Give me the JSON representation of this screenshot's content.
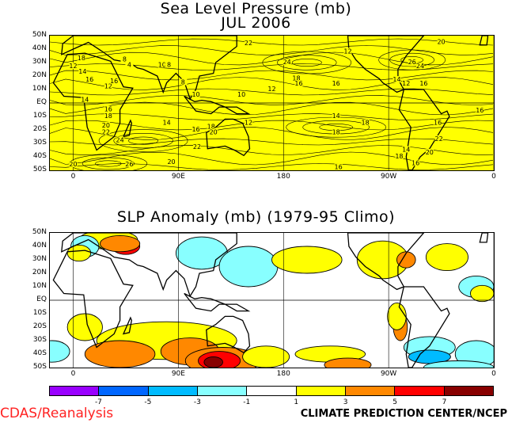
{
  "top_map": {
    "title_line1": "Sea Level Pressure (mb)",
    "title_line2": "JUL 2006",
    "fill_color": "#ffff00",
    "contour_labels": [
      {
        "text": "22",
        "lon": 150,
        "lat": 44
      },
      {
        "text": "20",
        "lon": 315,
        "lat": 45
      },
      {
        "text": "12",
        "lon": 235,
        "lat": 38
      },
      {
        "text": "24",
        "lon": 183,
        "lat": 30
      },
      {
        "text": "26",
        "lon": 290,
        "lat": 30
      },
      {
        "text": "24",
        "lon": 297,
        "lat": 27
      },
      {
        "text": "18",
        "lon": 7,
        "lat": 33
      },
      {
        "text": "12",
        "lon": 0,
        "lat": 27
      },
      {
        "text": "14",
        "lon": 8,
        "lat": 23
      },
      {
        "text": "16",
        "lon": 14,
        "lat": 17
      },
      {
        "text": "12",
        "lon": 30,
        "lat": 12
      },
      {
        "text": "16",
        "lon": 35,
        "lat": 16
      },
      {
        "text": "8",
        "lon": 44,
        "lat": 32
      },
      {
        "text": "4",
        "lon": 48,
        "lat": 28
      },
      {
        "text": "10",
        "lon": 76,
        "lat": 28
      },
      {
        "text": "8",
        "lon": 82,
        "lat": 28
      },
      {
        "text": "8",
        "lon": 94,
        "lat": 15
      },
      {
        "text": "10",
        "lon": 105,
        "lat": 6
      },
      {
        "text": "10",
        "lon": 144,
        "lat": 6
      },
      {
        "text": "12",
        "lon": 170,
        "lat": 10
      },
      {
        "text": "18",
        "lon": 191,
        "lat": 18
      },
      {
        "text": "16",
        "lon": 193,
        "lat": 14
      },
      {
        "text": "16",
        "lon": 225,
        "lat": 14
      },
      {
        "text": "14",
        "lon": 277,
        "lat": 17
      },
      {
        "text": "12",
        "lon": 285,
        "lat": 14
      },
      {
        "text": "16",
        "lon": 300,
        "lat": 14
      },
      {
        "text": "14",
        "lon": 10,
        "lat": 2
      },
      {
        "text": "16",
        "lon": 30,
        "lat": -5
      },
      {
        "text": "18",
        "lon": 30,
        "lat": -10
      },
      {
        "text": "20",
        "lon": 28,
        "lat": -17
      },
      {
        "text": "22",
        "lon": 28,
        "lat": -22
      },
      {
        "text": "24",
        "lon": 40,
        "lat": -28
      },
      {
        "text": "14",
        "lon": 80,
        "lat": -15
      },
      {
        "text": "16",
        "lon": 105,
        "lat": -20
      },
      {
        "text": "18",
        "lon": 118,
        "lat": -18
      },
      {
        "text": "20",
        "lon": 120,
        "lat": -22
      },
      {
        "text": "22",
        "lon": 106,
        "lat": -33
      },
      {
        "text": "12",
        "lon": 150,
        "lat": -15
      },
      {
        "text": "14",
        "lon": 225,
        "lat": -10
      },
      {
        "text": "18",
        "lon": 225,
        "lat": -22
      },
      {
        "text": "18",
        "lon": 250,
        "lat": -15
      },
      {
        "text": "16",
        "lon": 312,
        "lat": -15
      },
      {
        "text": "22",
        "lon": 313,
        "lat": -27
      },
      {
        "text": "20",
        "lon": 305,
        "lat": -37
      },
      {
        "text": "14",
        "lon": 285,
        "lat": -35
      },
      {
        "text": "18",
        "lon": 279,
        "lat": -40
      },
      {
        "text": "16",
        "lon": 293,
        "lat": -45
      },
      {
        "text": "14",
        "lon": 295,
        "lat": -51
      },
      {
        "text": "12",
        "lon": 296,
        "lat": -55
      },
      {
        "text": "18",
        "lon": 278,
        "lat": -51
      },
      {
        "text": "16",
        "lon": 227,
        "lat": -48
      },
      {
        "text": "12",
        "lon": 207,
        "lat": -52
      },
      {
        "text": "18",
        "lon": 155,
        "lat": -52
      },
      {
        "text": "14",
        "lon": 147,
        "lat": -58
      },
      {
        "text": "10",
        "lon": 157,
        "lat": -60
      },
      {
        "text": "22",
        "lon": -18,
        "lat": -36
      },
      {
        "text": "20",
        "lon": 0,
        "lat": -46
      },
      {
        "text": "16",
        "lon": 28,
        "lat": -54
      },
      {
        "text": "18",
        "lon": 5,
        "lat": -50
      },
      {
        "text": "26",
        "lon": 48,
        "lat": -46
      },
      {
        "text": "20",
        "lon": 84,
        "lat": -44
      },
      {
        "text": "12",
        "lon": 84,
        "lat": -51
      },
      {
        "text": "16",
        "lon": 348,
        "lat": -6
      }
    ]
  },
  "bottom_map": {
    "title": "SLP Anomaly (mb) (1979-95 Climo)",
    "anomaly_regions": [
      {
        "level": 5,
        "lon": 45,
        "lat": 40,
        "rx": 12,
        "ry": 6
      },
      {
        "level": 1,
        "lon": 30,
        "lat": 45,
        "rx": 25,
        "ry": 7
      },
      {
        "level": 3,
        "lon": 40,
        "lat": 42,
        "rx": 17,
        "ry": 6
      },
      {
        "level": -1,
        "lon": 110,
        "lat": 35,
        "rx": 22,
        "ry": 12
      },
      {
        "level": -1,
        "lon": 150,
        "lat": 25,
        "rx": 25,
        "ry": 15
      },
      {
        "level": 1,
        "lon": 200,
        "lat": 30,
        "rx": 30,
        "ry": 10
      },
      {
        "level": 1,
        "lon": 265,
        "lat": 30,
        "rx": 22,
        "ry": 14
      },
      {
        "level": 3,
        "lon": 285,
        "lat": 30,
        "rx": 8,
        "ry": 6
      },
      {
        "level": 1,
        "lon": 320,
        "lat": 32,
        "rx": 18,
        "ry": 10
      },
      {
        "level": -1,
        "lon": 345,
        "lat": 10,
        "rx": 15,
        "ry": 8
      },
      {
        "level": 1,
        "lon": 350,
        "lat": 5,
        "rx": 10,
        "ry": 6
      },
      {
        "level": -1,
        "lon": 10,
        "lat": 40,
        "rx": 12,
        "ry": 8
      },
      {
        "level": 1,
        "lon": 5,
        "lat": 35,
        "rx": 10,
        "ry": 6
      },
      {
        "level": 1,
        "lon": 80,
        "lat": -30,
        "rx": 60,
        "ry": 14
      },
      {
        "level": 3,
        "lon": 40,
        "lat": -40,
        "rx": 30,
        "ry": 10
      },
      {
        "level": 3,
        "lon": 100,
        "lat": -38,
        "rx": 25,
        "ry": 10
      },
      {
        "level": 3,
        "lon": 128,
        "lat": -45,
        "rx": 32,
        "ry": 10
      },
      {
        "level": 5,
        "lon": 125,
        "lat": -45,
        "rx": 18,
        "ry": 7
      },
      {
        "level": 7,
        "lon": 120,
        "lat": -46,
        "rx": 8,
        "ry": 4
      },
      {
        "level": 1,
        "lon": 165,
        "lat": -42,
        "rx": 20,
        "ry": 8
      },
      {
        "level": 1,
        "lon": 220,
        "lat": -40,
        "rx": 30,
        "ry": 6
      },
      {
        "level": 3,
        "lon": 280,
        "lat": -20,
        "rx": 6,
        "ry": 10
      },
      {
        "level": 1,
        "lon": 277,
        "lat": -12,
        "rx": 8,
        "ry": 10
      },
      {
        "level": 3,
        "lon": 235,
        "lat": -48,
        "rx": 20,
        "ry": 5
      },
      {
        "level": -1,
        "lon": 305,
        "lat": -35,
        "rx": 22,
        "ry": 8
      },
      {
        "level": -3,
        "lon": 305,
        "lat": -42,
        "rx": 18,
        "ry": 5
      },
      {
        "level": -1,
        "lon": 345,
        "lat": -40,
        "rx": 18,
        "ry": 10
      },
      {
        "level": 1,
        "lon": 10,
        "lat": -20,
        "rx": 15,
        "ry": 10
      },
      {
        "level": -1,
        "lon": -18,
        "lat": -38,
        "rx": 15,
        "ry": 8
      },
      {
        "level": -1,
        "lon": 330,
        "lat": -50,
        "rx": 30,
        "ry": 5
      }
    ]
  },
  "axes": {
    "lat_labels": [
      "50N",
      "40N",
      "30N",
      "20N",
      "10N",
      "EQ",
      "10S",
      "20S",
      "30S",
      "40S",
      "50S"
    ],
    "lon_labels": [
      "0",
      "90E",
      "180",
      "90W",
      "0"
    ],
    "lat_values": [
      50,
      40,
      30,
      20,
      10,
      0,
      -10,
      -20,
      -30,
      -40,
      -50
    ],
    "lon_values": [
      0,
      90,
      180,
      270,
      360
    ],
    "lon_range": [
      -20,
      360
    ],
    "lat_range": [
      -50,
      50
    ]
  },
  "colorbar": {
    "colors": [
      "#9900ff",
      "#0066ff",
      "#00bbff",
      "#88ffff",
      "#ffffff",
      "#ffff00",
      "#ff8800",
      "#ff0000",
      "#880000"
    ],
    "labels": [
      "-7",
      "-5",
      "-3",
      "-1",
      "1",
      "3",
      "5",
      "7"
    ]
  },
  "footer": {
    "left": "CDAS/Reanalysis",
    "right": "CLIMATE PREDICTION CENTER/NCEP"
  }
}
